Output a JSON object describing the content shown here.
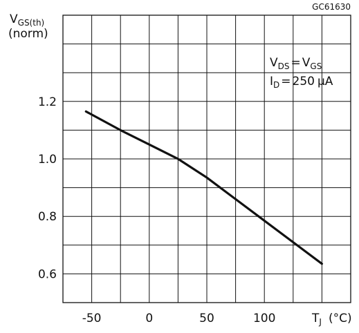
{
  "chart_data": {
    "type": "line",
    "title": "",
    "code": "GC61630",
    "ylabel": {
      "main": "V",
      "sub": "GS(th)",
      "line2": "(norm)"
    },
    "xlabel": {
      "main": "T",
      "sub": "J",
      "unit": "(°C)"
    },
    "xlim": [
      -75,
      175
    ],
    "ylim": [
      0.5,
      1.5
    ],
    "xticks": [
      {
        "value": -50,
        "label": "-50"
      },
      {
        "value": 0,
        "label": "0"
      },
      {
        "value": 50,
        "label": "50"
      },
      {
        "value": 100,
        "label": "100"
      }
    ],
    "yticks": [
      {
        "value": 0.6,
        "label": "0.6"
      },
      {
        "value": 0.8,
        "label": "0.8"
      },
      {
        "value": 1.0,
        "label": "1.0"
      },
      {
        "value": 1.2,
        "label": "1.2"
      }
    ],
    "grid": true,
    "annotations": {
      "line1": {
        "left_main": "V",
        "left_sub": "DS",
        "operator": "=",
        "right_main": "V",
        "right_sub": "GS"
      },
      "line2": {
        "left_main": "I",
        "left_sub": "D",
        "operator": "=",
        "value": "250",
        "unit": "µA"
      }
    },
    "series": [
      {
        "x": [
          -55,
          -25,
          0,
          25,
          50,
          75,
          100,
          125,
          150
        ],
        "y": [
          1.165,
          1.1,
          1.05,
          1.0,
          0.935,
          0.86,
          0.785,
          0.71,
          0.635
        ],
        "color": "#111111"
      }
    ]
  }
}
